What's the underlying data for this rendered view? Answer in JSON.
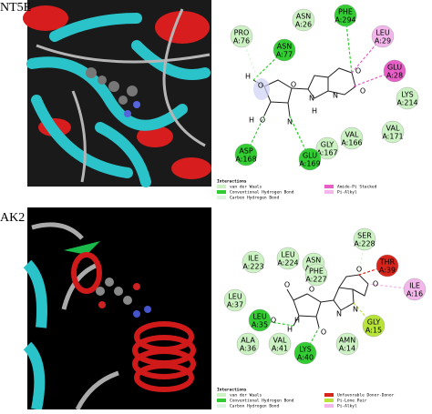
{
  "panels": [
    {
      "label": "NT5E",
      "residues": [
        {
          "name": "PRO",
          "id": "A:76"
        },
        {
          "name": "ASN",
          "id": "A:26"
        },
        {
          "name": "PHE",
          "id": "A:294"
        },
        {
          "name": "ASN",
          "id": "A:77"
        },
        {
          "name": "LEU",
          "id": "A:29"
        },
        {
          "name": "GLU",
          "id": "A:28"
        },
        {
          "name": "LYS",
          "id": "A:214"
        },
        {
          "name": "VAL",
          "id": "A:171"
        },
        {
          "name": "VAL",
          "id": "A:166"
        },
        {
          "name": "GLY",
          "id": "A:167"
        },
        {
          "name": "GLU",
          "id": "A:169"
        },
        {
          "name": "ASP",
          "id": "A:168"
        }
      ],
      "atoms": [
        "H",
        "O",
        "O",
        "O",
        "H",
        "N",
        "N",
        "N",
        "O",
        "O",
        "H"
      ],
      "legend_title": "Interactions",
      "legend": [
        "van der Waals",
        "Conventional Hydrogen Bond",
        "Carbon Hydrogen Bond",
        "Amide-Pi Stacked",
        "Pi-Alkyl"
      ]
    },
    {
      "label": "AK2",
      "residues": [
        {
          "name": "SER",
          "id": "A:228"
        },
        {
          "name": "ILE",
          "id": "A:223"
        },
        {
          "name": "LEU",
          "id": "A:224"
        },
        {
          "name": "ASN",
          "id": "A:38"
        },
        {
          "name": "PHE",
          "id": "A:227"
        },
        {
          "name": "THR",
          "id": "A:39"
        },
        {
          "name": "ILE",
          "id": "A:16"
        },
        {
          "name": "LEU",
          "id": "A:37"
        },
        {
          "name": "LEU",
          "id": "A:35"
        },
        {
          "name": "GLY",
          "id": "A:15"
        },
        {
          "name": "ALA",
          "id": "A:36"
        },
        {
          "name": "VAL",
          "id": "A:41"
        },
        {
          "name": "AMN",
          "id": "A:14"
        },
        {
          "name": "LYS",
          "id": "A:40"
        }
      ],
      "atoms": [
        "O",
        "O",
        "H",
        "O",
        "O",
        "N",
        "N",
        "O",
        "O",
        "H"
      ],
      "legend_title": "Interactions",
      "legend": [
        "van der Waals",
        "Conventional Hydrogen Bond",
        "Carbon Hydrogen Bond",
        "Unfavorable Donor-Donor",
        "Pi-Lone Pair",
        "Pi-Alkyl"
      ]
    }
  ]
}
